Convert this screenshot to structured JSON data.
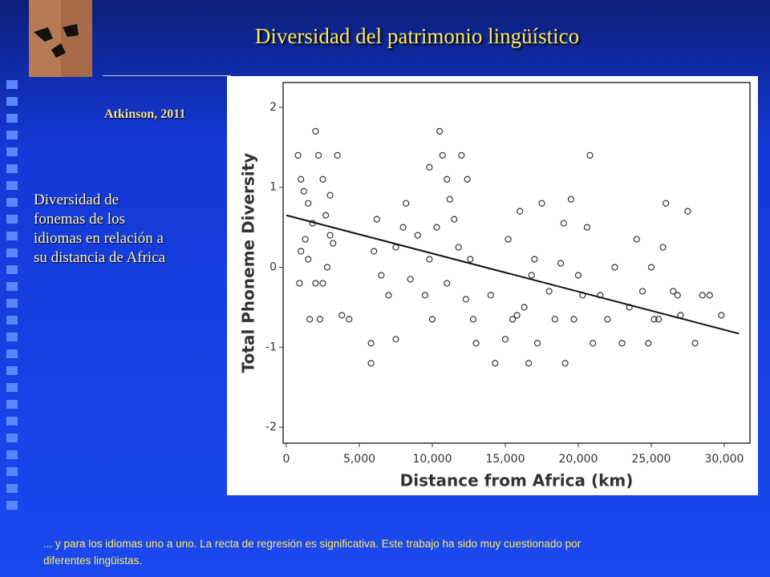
{
  "slide": {
    "title": "Diversidad del patrimonio lingüístico",
    "citation": "Atkinson, 2011",
    "side_text": [
      "Diversidad de",
      "fonemas de los",
      "idiomas en relación a",
      "su distancia de Africa"
    ],
    "footer": [
      "... y para los idiomas uno a uno. La recta de regresión es significativa. Este trabajo ha sido muy cuestionado por",
      "diferentes lingüistas."
    ]
  },
  "chart_data": {
    "type": "scatter",
    "y_label": "Total Phoneme Diversity",
    "x_label": "Distance from Africa (km)",
    "xlim": [
      -220,
      31760
    ],
    "ylim": [
      -2.2,
      2.31
    ],
    "xticks": [
      0,
      {
        "value": 5000,
        "label": "5,000"
      },
      {
        "value": 10000,
        "label": "10,000"
      },
      {
        "value": 15000,
        "label": "15,000"
      },
      {
        "value": 20000,
        "label": "20,000"
      },
      {
        "value": 25000,
        "label": "25,000"
      },
      {
        "value": 30000,
        "label": "30,000"
      }
    ],
    "yticks": [
      -2,
      -1,
      0,
      1,
      2
    ],
    "color": "#333333",
    "x": [
      800,
      1000,
      1200,
      1500,
      1800,
      2000,
      2200,
      2500,
      2700,
      3000,
      1000,
      1500,
      2000,
      2500,
      3000,
      3500,
      1600,
      2300,
      900,
      3800,
      4300,
      3200,
      1300,
      2800,
      5800,
      5800,
      6200,
      6000,
      6500,
      7000,
      7500,
      7500,
      8000,
      8200,
      8500,
      9000,
      9500,
      9800,
      9800,
      10000,
      10300,
      10500,
      10700,
      11000,
      11200,
      11500,
      12000,
      12400,
      11800,
      12300,
      11000,
      12800,
      13000,
      12600,
      14000,
      14300,
      15000,
      15200,
      15800,
      16000,
      16300,
      16600,
      17000,
      17200,
      17500,
      18000,
      18400,
      18800,
      19000,
      19500,
      19700,
      20000,
      20300,
      20600,
      20800,
      21000,
      19100,
      15500,
      16800,
      21500,
      22000,
      22500,
      23000,
      23500,
      24000,
      24400,
      24800,
      25000,
      25500,
      25800,
      26000,
      26500,
      27000,
      27500,
      28000,
      28500,
      29000,
      29800,
      25200,
      26800
    ],
    "values": [
      1.4,
      1.1,
      0.95,
      0.8,
      0.55,
      1.7,
      1.4,
      1.1,
      0.65,
      0.4,
      0.2,
      0.1,
      -0.2,
      -0.2,
      0.9,
      1.4,
      -0.65,
      -0.65,
      -0.2,
      -0.6,
      -0.65,
      0.3,
      0.35,
      0.0,
      -0.95,
      -1.2,
      0.6,
      0.2,
      -0.1,
      -0.35,
      0.25,
      -0.9,
      0.5,
      0.8,
      -0.15,
      0.4,
      -0.35,
      0.1,
      1.25,
      -0.65,
      0.5,
      1.7,
      1.4,
      1.1,
      0.85,
      0.6,
      1.4,
      1.1,
      0.25,
      -0.4,
      -0.2,
      -0.65,
      -0.95,
      0.1,
      -0.35,
      -1.2,
      -0.9,
      0.35,
      -0.6,
      0.7,
      -0.5,
      -1.2,
      0.1,
      -0.95,
      0.8,
      -0.3,
      -0.65,
      0.05,
      0.55,
      0.85,
      -0.65,
      -0.1,
      -0.35,
      0.5,
      1.4,
      -0.95,
      -1.2,
      -0.65,
      -0.1,
      -0.35,
      -0.65,
      0.0,
      -0.95,
      -0.5,
      0.35,
      -0.3,
      -0.95,
      0.0,
      -0.65,
      0.25,
      0.8,
      -0.3,
      -0.6,
      0.7,
      -0.95,
      -0.35,
      -0.35,
      -0.6,
      -0.65,
      -0.35
    ],
    "regression": {
      "x": [
        0,
        31000
      ],
      "y": [
        0.65,
        -0.83
      ]
    }
  }
}
